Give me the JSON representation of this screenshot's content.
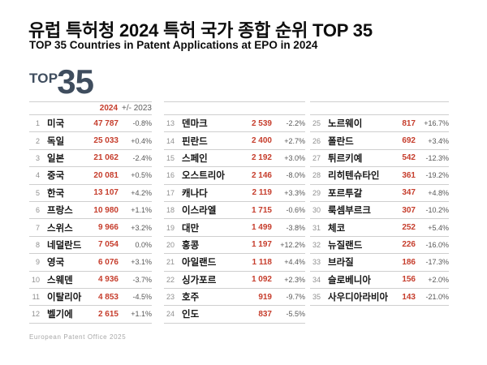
{
  "header": {
    "title": "유럽 특허청 2024 특허 국가 종합 순위 TOP 35",
    "subtitle": "TOP 35 Countries in Patent Applications at EPO in 2024"
  },
  "logo": {
    "top": "TOP",
    "number": "35"
  },
  "table": {
    "col_header": {
      "year": "2024",
      "change": "+/- 2023"
    }
  },
  "footer": {
    "source": "European Patent Office 2025"
  },
  "colors": {
    "accent_red": "#c63d2c",
    "logo_slate": "#3f4d5e",
    "divider": "#cfcfcf"
  },
  "chart_data": {
    "type": "table",
    "title": "유럽 특허청 2024 특허 국가 종합 순위 TOP 35",
    "subtitle": "TOP 35 Countries in Patent Applications at EPO in 2024",
    "columns": [
      "rank",
      "country",
      "applications_2024",
      "change_vs_2023"
    ],
    "column_layout": [
      12,
      12,
      11
    ],
    "rows": [
      {
        "rank": 1,
        "country": "미국",
        "value": 47787,
        "display": "47 787",
        "change": "-0.8%"
      },
      {
        "rank": 2,
        "country": "독일",
        "value": 25033,
        "display": "25 033",
        "change": "+0.4%"
      },
      {
        "rank": 3,
        "country": "일본",
        "value": 21062,
        "display": "21 062",
        "change": "-2.4%"
      },
      {
        "rank": 4,
        "country": "중국",
        "value": 20081,
        "display": "20 081",
        "change": "+0.5%"
      },
      {
        "rank": 5,
        "country": "한국",
        "value": 13107,
        "display": "13 107",
        "change": "+4.2%"
      },
      {
        "rank": 6,
        "country": "프랑스",
        "value": 10980,
        "display": "10 980",
        "change": "+1.1%"
      },
      {
        "rank": 7,
        "country": "스위스",
        "value": 9966,
        "display": "9 966",
        "change": "+3.2%"
      },
      {
        "rank": 8,
        "country": "네덜란드",
        "value": 7054,
        "display": "7 054",
        "change": "0.0%"
      },
      {
        "rank": 9,
        "country": "영국",
        "value": 6076,
        "display": "6 076",
        "change": "+3.1%"
      },
      {
        "rank": 10,
        "country": "스웨덴",
        "value": 4936,
        "display": "4 936",
        "change": "-3.7%"
      },
      {
        "rank": 11,
        "country": "이탈리아",
        "value": 4853,
        "display": "4 853",
        "change": "-4.5%"
      },
      {
        "rank": 12,
        "country": "벨기에",
        "value": 2615,
        "display": "2 615",
        "change": "+1.1%"
      },
      {
        "rank": 13,
        "country": "덴마크",
        "value": 2539,
        "display": "2 539",
        "change": "-2.2%"
      },
      {
        "rank": 14,
        "country": "핀란드",
        "value": 2400,
        "display": "2 400",
        "change": "+2.7%"
      },
      {
        "rank": 15,
        "country": "스페인",
        "value": 2192,
        "display": "2 192",
        "change": "+3.0%"
      },
      {
        "rank": 16,
        "country": "오스트리아",
        "value": 2146,
        "display": "2 146",
        "change": "-8.0%"
      },
      {
        "rank": 17,
        "country": "캐나다",
        "value": 2119,
        "display": "2 119",
        "change": "+3.3%"
      },
      {
        "rank": 18,
        "country": "이스라엘",
        "value": 1715,
        "display": "1 715",
        "change": "-0.6%"
      },
      {
        "rank": 19,
        "country": "대만",
        "value": 1499,
        "display": "1 499",
        "change": "-3.8%"
      },
      {
        "rank": 20,
        "country": "홍콩",
        "value": 1197,
        "display": "1 197",
        "change": "+12.2%"
      },
      {
        "rank": 21,
        "country": "아일랜드",
        "value": 1118,
        "display": "1 118",
        "change": "+4.4%"
      },
      {
        "rank": 22,
        "country": "싱가포르",
        "value": 1092,
        "display": "1 092",
        "change": "+2.3%"
      },
      {
        "rank": 23,
        "country": "호주",
        "value": 919,
        "display": "919",
        "change": "-9.7%"
      },
      {
        "rank": 24,
        "country": "인도",
        "value": 837,
        "display": "837",
        "change": "-5.5%"
      },
      {
        "rank": 25,
        "country": "노르웨이",
        "value": 817,
        "display": "817",
        "change": "+16.7%"
      },
      {
        "rank": 26,
        "country": "폴란드",
        "value": 692,
        "display": "692",
        "change": "+3.4%"
      },
      {
        "rank": 27,
        "country": "튀르키예",
        "value": 542,
        "display": "542",
        "change": "-12.3%"
      },
      {
        "rank": 28,
        "country": "리히텐슈타인",
        "value": 361,
        "display": "361",
        "change": "-19.2%"
      },
      {
        "rank": 29,
        "country": "포르투갈",
        "value": 347,
        "display": "347",
        "change": "+4.8%"
      },
      {
        "rank": 30,
        "country": "룩셈부르크",
        "value": 307,
        "display": "307",
        "change": "-10.2%"
      },
      {
        "rank": 31,
        "country": "체코",
        "value": 252,
        "display": "252",
        "change": "+5.4%"
      },
      {
        "rank": 32,
        "country": "뉴질랜드",
        "value": 226,
        "display": "226",
        "change": "-16.0%"
      },
      {
        "rank": 33,
        "country": "브라질",
        "value": 186,
        "display": "186",
        "change": "-17.3%"
      },
      {
        "rank": 34,
        "country": "슬로베니아",
        "value": 156,
        "display": "156",
        "change": "+2.0%"
      },
      {
        "rank": 35,
        "country": "사우디아라비아",
        "value": 143,
        "display": "143",
        "change": "-21.0%"
      }
    ]
  }
}
